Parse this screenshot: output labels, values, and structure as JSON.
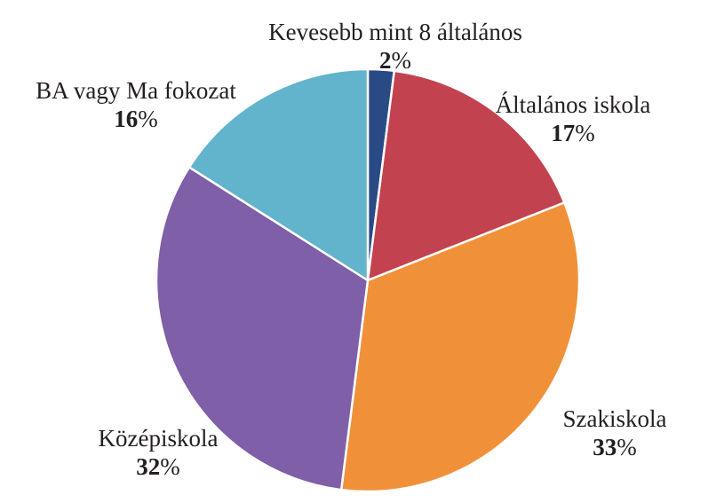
{
  "chart_data": {
    "type": "pie",
    "title": "",
    "start_angle_deg": 0,
    "direction": "clockwise",
    "legend": "none",
    "slices": [
      {
        "label": "Kevesebb mint 8 általános",
        "value": 2,
        "value_text": "2",
        "unit": "%",
        "color": "#2a4a85"
      },
      {
        "label": "Általános iskola",
        "value": 17,
        "value_text": "17",
        "unit": "%",
        "color": "#c3424f"
      },
      {
        "label": "Szakiskola",
        "value": 33,
        "value_text": "33",
        "unit": "%",
        "color": "#f0913a"
      },
      {
        "label": "Középiskola",
        "value": 32,
        "value_text": "32",
        "unit": "%",
        "color": "#7f5fa8"
      },
      {
        "label": "BA vagy Ma fokozat",
        "value": 16,
        "value_text": "16",
        "unit": "%",
        "color": "#62b3cc"
      }
    ]
  }
}
